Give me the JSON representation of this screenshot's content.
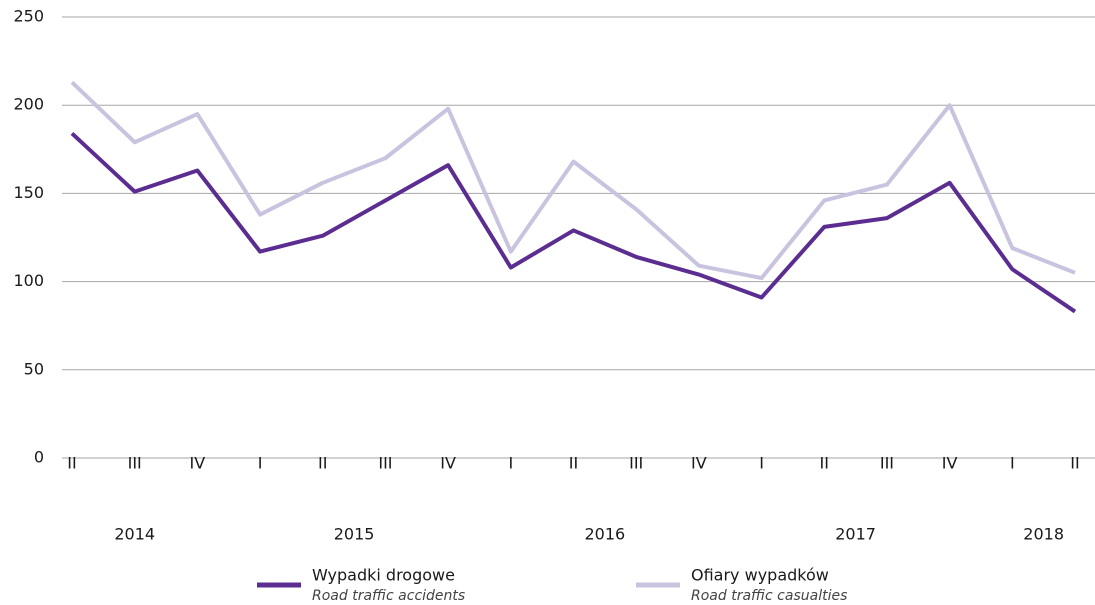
{
  "chart_data": {
    "type": "line",
    "categories": [
      "II",
      "III",
      "IV",
      "I",
      "II",
      "III",
      "IV",
      "I",
      "II",
      "III",
      "IV",
      "I",
      "II",
      "III",
      "IV",
      "I",
      "II"
    ],
    "year_groups": [
      {
        "label": "2014",
        "span": 3
      },
      {
        "label": "2015",
        "span": 4
      },
      {
        "label": "2016",
        "span": 4
      },
      {
        "label": "2017",
        "span": 4
      },
      {
        "label": "2018",
        "span": 2
      }
    ],
    "series": [
      {
        "name": "Wypadki drogowe",
        "name_en": "Road traffic accidents",
        "color": "#5b2d91",
        "values": [
          184,
          151,
          163,
          117,
          126,
          146,
          166,
          108,
          129,
          114,
          104,
          91,
          131,
          136,
          156,
          107,
          83
        ]
      },
      {
        "name": "Ofiary wypadków",
        "name_en": "Road traffic casualties",
        "color": "#c9c3df",
        "values": [
          213,
          179,
          195,
          138,
          156,
          170,
          198,
          117,
          168,
          141,
          109,
          102,
          146,
          155,
          200,
          119,
          105
        ]
      }
    ],
    "ylim": [
      0,
      250
    ],
    "yticks": [
      0,
      50,
      100,
      150,
      200,
      250
    ],
    "grid": true,
    "legend": "bottom"
  }
}
